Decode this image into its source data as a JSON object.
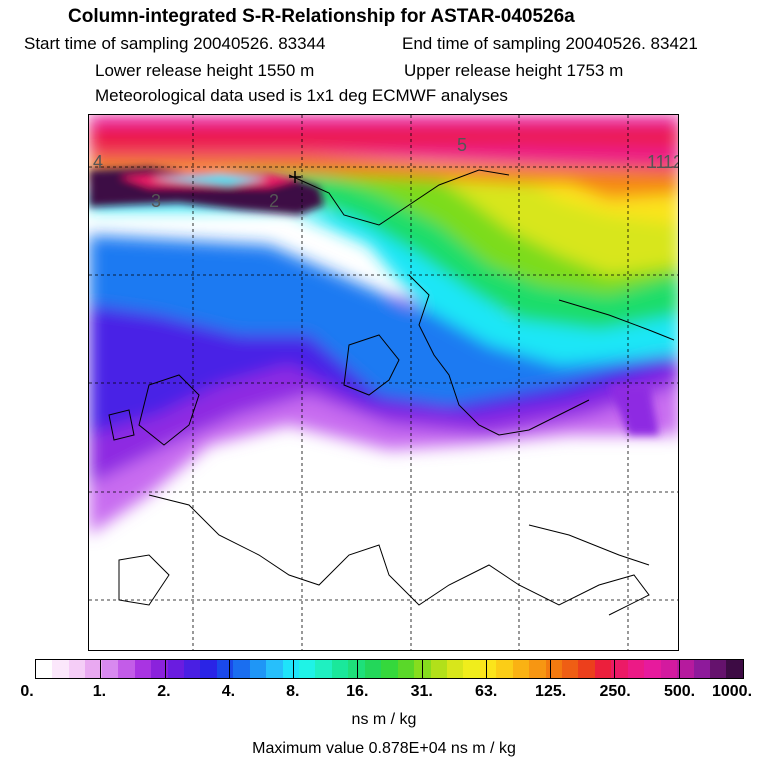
{
  "title": "Column-integrated S-R-Relationship for ASTAR-040526a",
  "start_time": "Start time of sampling 20040526. 83344",
  "end_time": "End time of sampling 20040526. 83421",
  "lower_height": "Lower release height 1550 m",
  "upper_height": "Upper release height 1753 m",
  "met_data": "Meteorological data used is 1x1 deg ECMWF analyses",
  "map": {
    "trajectory_labels": [
      "4",
      "3",
      "2",
      "5",
      "11",
      "12"
    ]
  },
  "colorbar": {
    "labels": [
      "0.",
      "1.",
      "2.",
      "4.",
      "8.",
      "16.",
      "31.",
      "63.",
      "125.",
      "250.",
      "500.",
      "1000."
    ],
    "colors": [
      "#ffffff",
      "#fbe7fb",
      "#f5cdf7",
      "#e9a9f1",
      "#d889ef",
      "#c35ce8",
      "#a934e2",
      "#8b22dc",
      "#6a1ce0",
      "#4a1fe3",
      "#2a24e6",
      "#1a49ea",
      "#1a6ef0",
      "#1f96f6",
      "#27bffb",
      "#1fe4fa",
      "#1ff3e6",
      "#1ff0c1",
      "#1ae89b",
      "#1ee07a",
      "#23d75a",
      "#35d83c",
      "#5ad829",
      "#86dd1e",
      "#b2e01a",
      "#d8e61b",
      "#f0ed1c",
      "#fbe41b",
      "#fbcd17",
      "#fab213",
      "#f79612",
      "#f37a10",
      "#ef5e14",
      "#ec3f1c",
      "#ec1f3c",
      "#ec1a66",
      "#ec1a86",
      "#e71a9d",
      "#d31a9f",
      "#b61a9e",
      "#8e1a9b",
      "#65126d",
      "#3d0b44"
    ],
    "unit": "ns m / kg",
    "max_value": "Maximum value  0.878E+04 ns m / kg"
  }
}
